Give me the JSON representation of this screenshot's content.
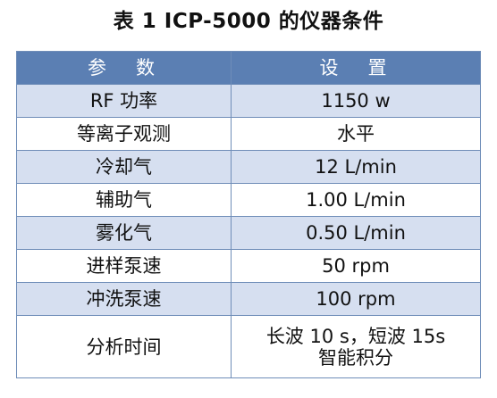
{
  "title": "表 1 ICP-5000 的仪器条件",
  "table": {
    "headers": [
      "参　数",
      "设　置"
    ],
    "rows": [
      {
        "param": "RF 功率",
        "value": [
          "1150 w"
        ]
      },
      {
        "param": "等离子观测",
        "value": [
          "水平"
        ]
      },
      {
        "param": "冷却气",
        "value": [
          "12 L/min"
        ]
      },
      {
        "param": "辅助气",
        "value": [
          "1.00 L/min"
        ]
      },
      {
        "param": "雾化气",
        "value": [
          "0.50 L/min"
        ]
      },
      {
        "param": "进样泵速",
        "value": [
          "50 rpm"
        ]
      },
      {
        "param": "冲洗泵速",
        "value": [
          "100 rpm"
        ]
      },
      {
        "param": "分析时间",
        "value": [
          "长波 10 s，短波 15s",
          "智能积分"
        ]
      }
    ]
  },
  "colors": {
    "header_bg": "#5b7fb3",
    "band_bg": "#d6dff0",
    "border": "#6f8db8"
  }
}
